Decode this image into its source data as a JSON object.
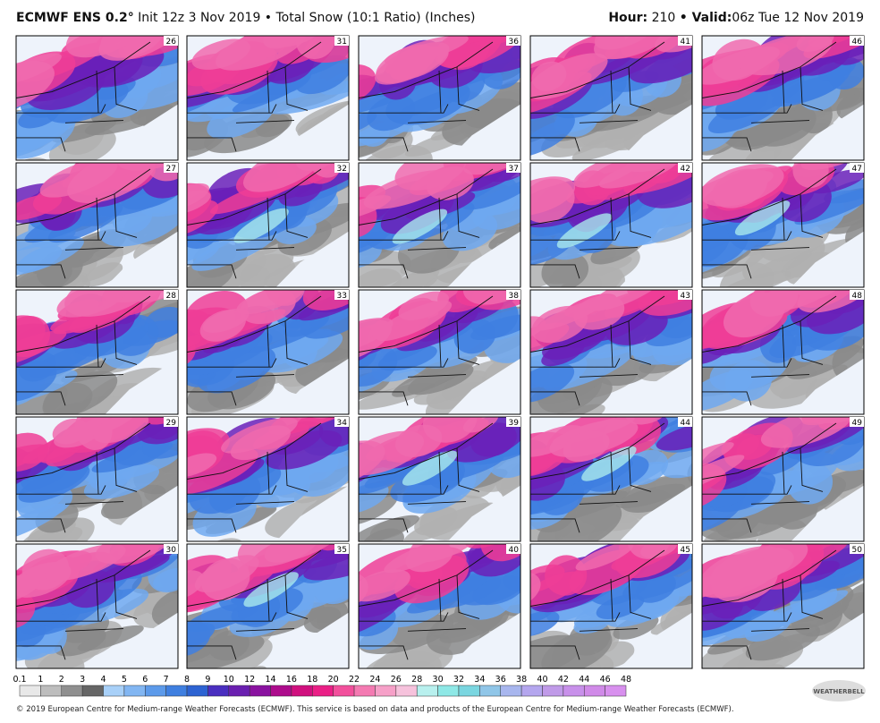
{
  "header": {
    "model": "ECMWF ENS 0.2°",
    "description": "Init 12z 3 Nov 2019 • Total Snow (10:1 Ratio) (Inches)",
    "hour_label": "Hour:",
    "hour": "210",
    "valid_label": "• Valid:",
    "valid": "06z Tue 12 Nov 2019"
  },
  "panels": [
    {
      "member": "26"
    },
    {
      "member": "31"
    },
    {
      "member": "36"
    },
    {
      "member": "41"
    },
    {
      "member": "46"
    },
    {
      "member": "27"
    },
    {
      "member": "32"
    },
    {
      "member": "37"
    },
    {
      "member": "42"
    },
    {
      "member": "47"
    },
    {
      "member": "28"
    },
    {
      "member": "33"
    },
    {
      "member": "38"
    },
    {
      "member": "43"
    },
    {
      "member": "48"
    },
    {
      "member": "29"
    },
    {
      "member": "34"
    },
    {
      "member": "39"
    },
    {
      "member": "44"
    },
    {
      "member": "49"
    },
    {
      "member": "30"
    },
    {
      "member": "35"
    },
    {
      "member": "40"
    },
    {
      "member": "45"
    },
    {
      "member": "50"
    }
  ],
  "colorbar": {
    "labels": [
      "0.1",
      "1",
      "2",
      "3",
      "4",
      "5",
      "6",
      "7",
      "8",
      "9",
      "10",
      "12",
      "14",
      "16",
      "18",
      "20",
      "22",
      "24",
      "26",
      "28",
      "30",
      "32",
      "34",
      "36",
      "38",
      "40",
      "42",
      "44",
      "46",
      "48"
    ],
    "colors": [
      "#e8e8e8",
      "#bdbdbd",
      "#8f8f8f",
      "#666666",
      "#a8d0f8",
      "#82b6f2",
      "#5c9aea",
      "#3f7fe0",
      "#2d63d2",
      "#4a2fc0",
      "#6a1fb0",
      "#8a12a0",
      "#ad0c8c",
      "#d0107e",
      "#ea1f86",
      "#f2509c",
      "#f47ab2",
      "#f6a0c8",
      "#f6c2dc",
      "#b8f0ee",
      "#8ee8e6",
      "#7ad6e0",
      "#90c6e8",
      "#a8b6ee",
      "#b4a6ee",
      "#c09ae8",
      "#c890ea",
      "#d08ae8",
      "#d890ee"
    ]
  },
  "logo": "WEATHERBELL",
  "footer": "© 2019 European Centre for Medium-range Weather Forecasts (ECMWF). This service is based on data and products of the European Centre for Medium-range Weather Forecasts (ECMWF)."
}
